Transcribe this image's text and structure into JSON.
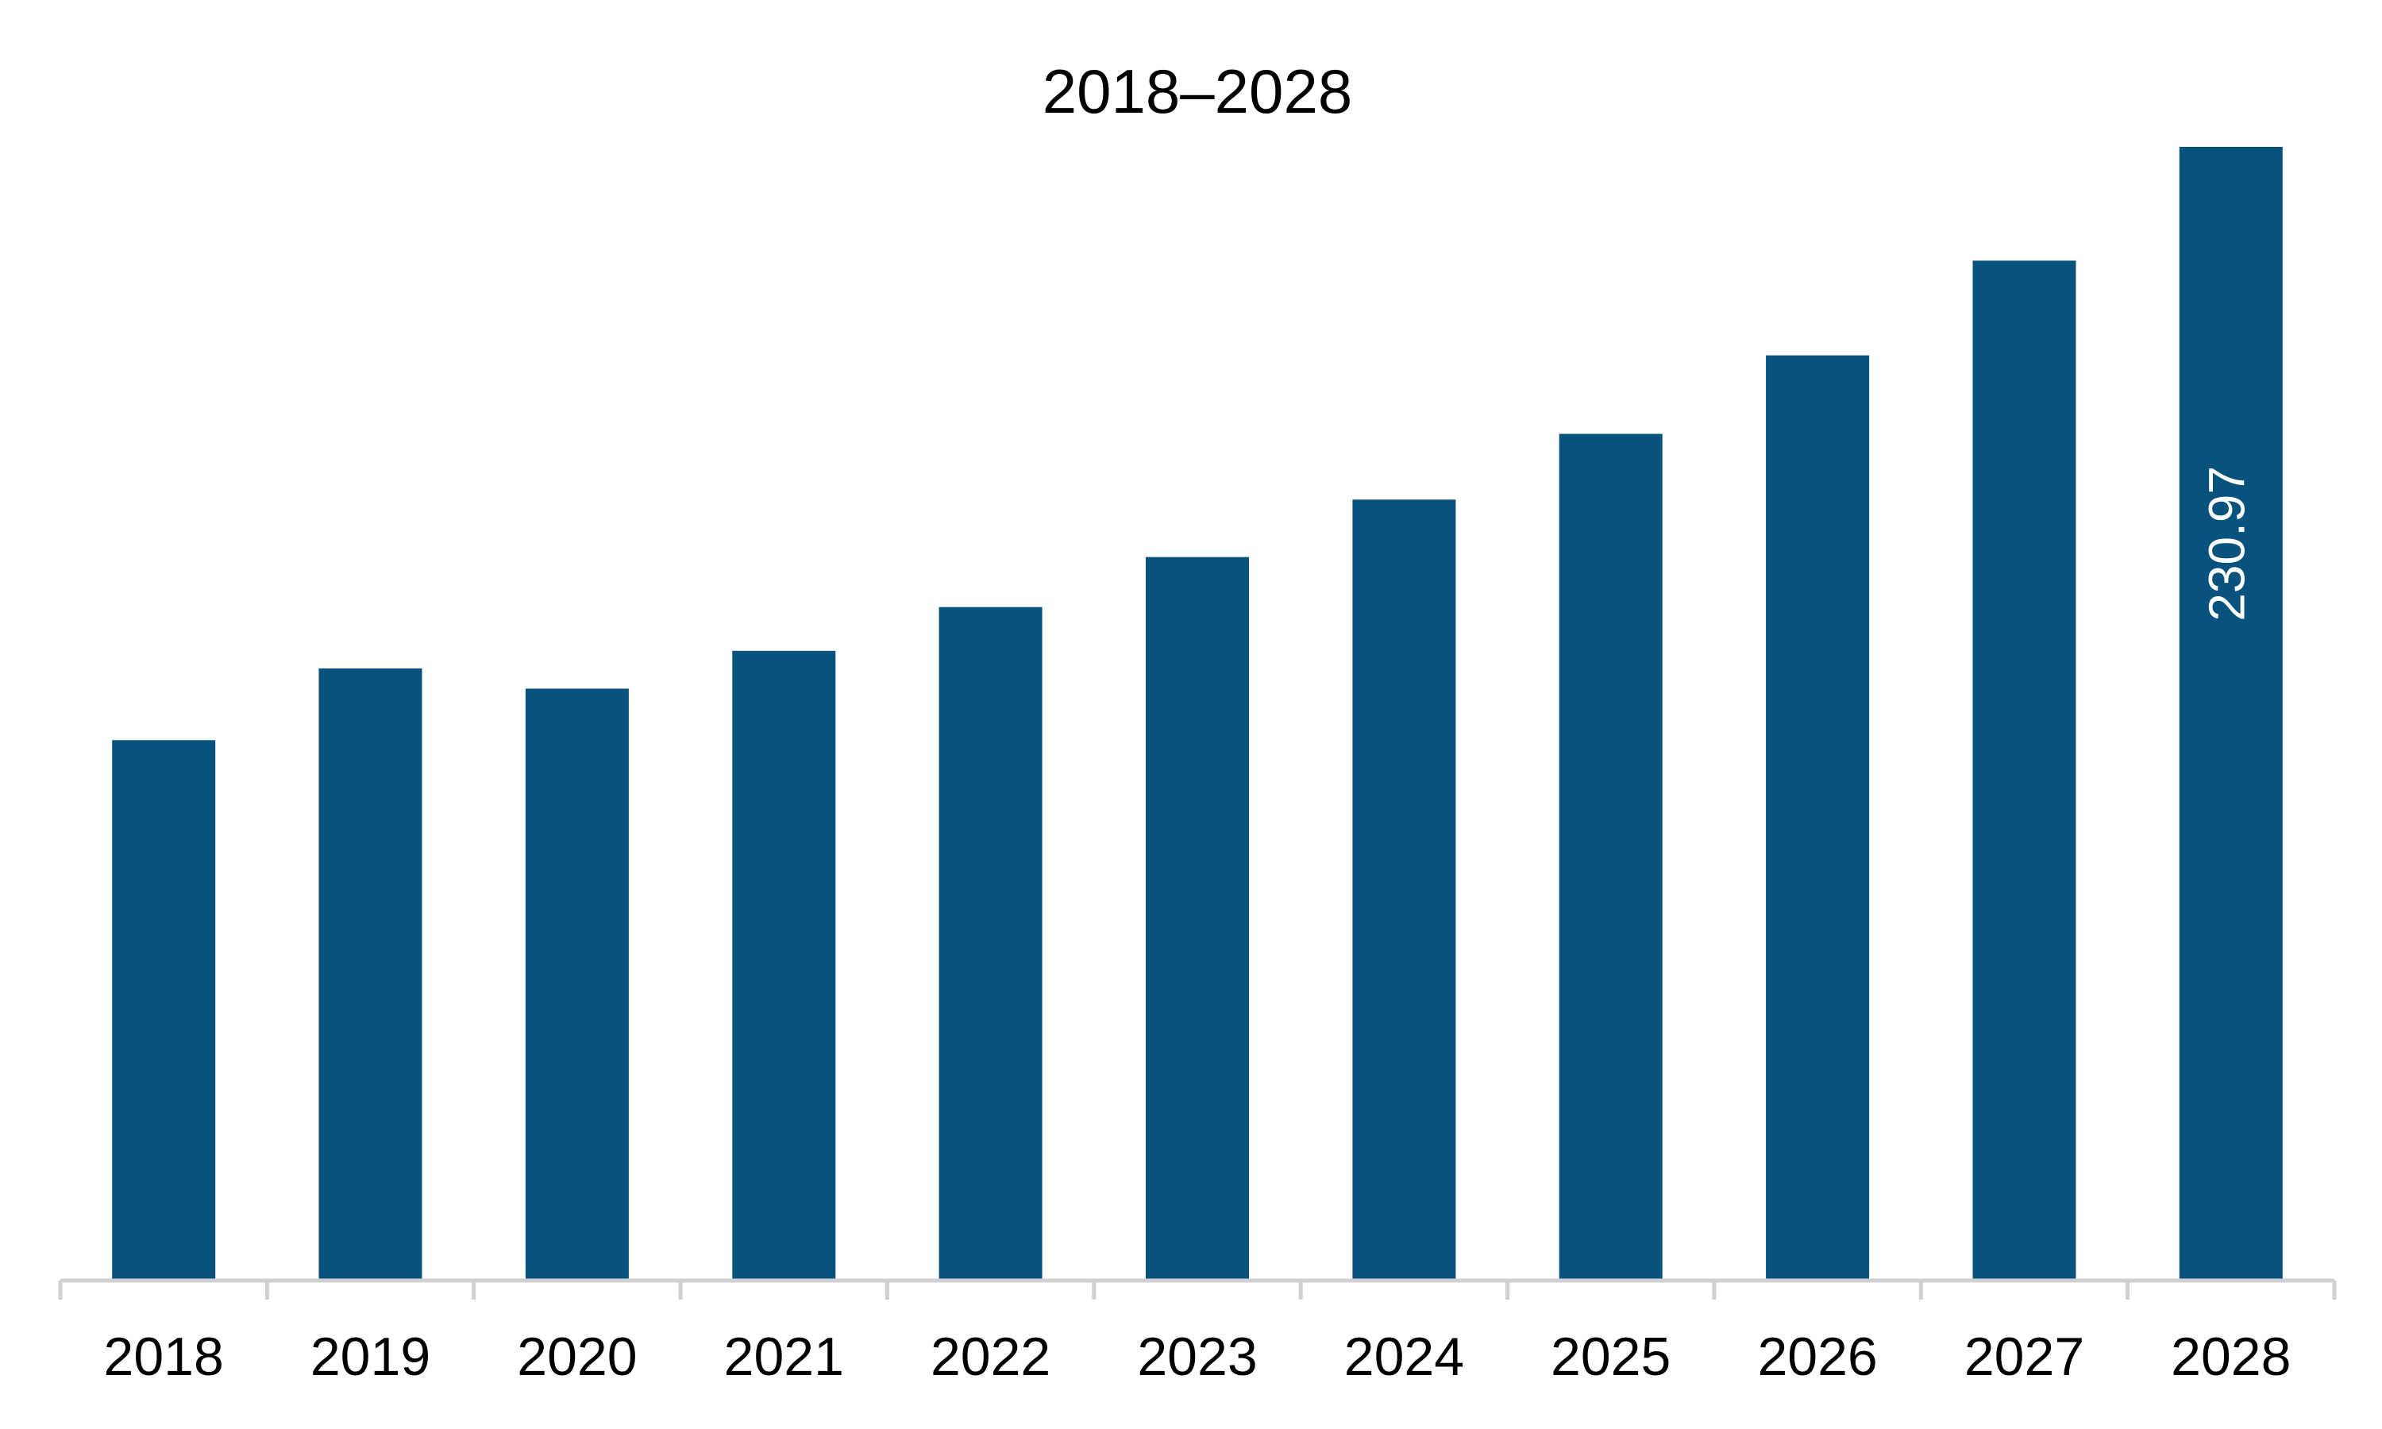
{
  "chart_data": {
    "type": "bar",
    "title": "2018–2028",
    "xlabel": "",
    "ylabel": "",
    "categories": [
      "2018",
      "2019",
      "2020",
      "2021",
      "2022",
      "2023",
      "2024",
      "2025",
      "2026",
      "2027",
      "2028"
    ],
    "values": [
      110.1,
      124.7,
      120.6,
      128.3,
      137.2,
      147.4,
      159.1,
      172.5,
      188.5,
      207.8,
      230.97
    ],
    "data_labels": [
      {
        "category": "2028",
        "text": "230.97"
      }
    ],
    "ylim": [
      0,
      230.97
    ],
    "bar_color": "#08537e",
    "axis_color": "#d0d0d0",
    "grid": false,
    "legend": "none"
  }
}
